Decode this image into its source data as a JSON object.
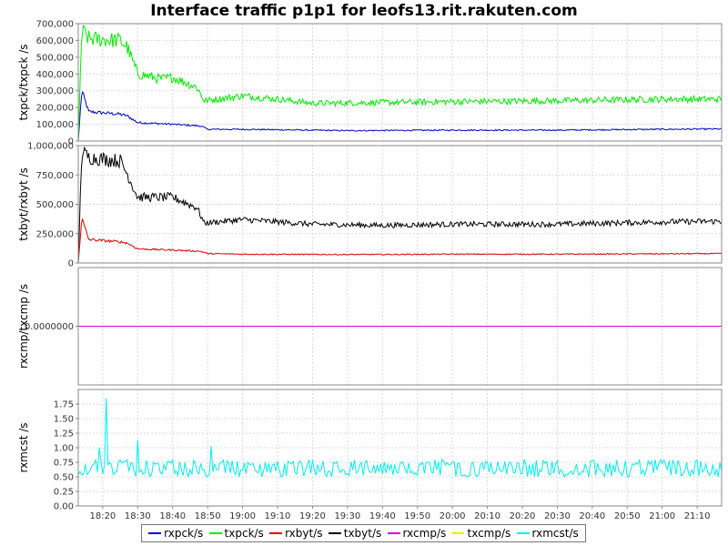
{
  "chart_data": {
    "title": "Interface traffic p1p1 for leofs13.rit.rakuten.com",
    "type": "line",
    "x_ticks": [
      "18:20",
      "18:30",
      "18:40",
      "18:50",
      "19:00",
      "19:10",
      "19:20",
      "19:30",
      "19:40",
      "19:50",
      "20:00",
      "20:10",
      "20:20",
      "20:30",
      "20:40",
      "20:50",
      "21:00",
      "21:10"
    ],
    "xlim": [
      "18:13",
      "21:17"
    ],
    "colors": {
      "rxpck": "#0000cc",
      "txpck": "#00ee00",
      "rxbyt": "#dd0000",
      "txbyt": "#000000",
      "rxcmp": "#dd00dd",
      "txcmp": "#eeee00",
      "rxmcst": "#00eeee"
    },
    "legend": [
      "rxpck/s",
      "txpck/s",
      "rxbyt/s",
      "txbyt/s",
      "rxcmp/s",
      "txcmp/s",
      "rxmcst/s"
    ],
    "legend_position": "bottom",
    "grid": true,
    "panels": [
      {
        "ylabel": "txpck/txpck /s",
        "ylim": [
          0,
          700000
        ],
        "y_ticks": [
          "0",
          "100,000",
          "200,000",
          "300,000",
          "400,000",
          "500,000",
          "600,000",
          "700,000"
        ],
        "series": [
          {
            "name": "rxpck/s",
            "color_key": "rxpck",
            "noise": 0.06,
            "points": [
              [
                "18:13",
                0
              ],
              [
                "18:14",
                300000
              ],
              [
                "18:16",
                175000
              ],
              [
                "18:25",
                160000
              ],
              [
                "18:27",
                150000
              ],
              [
                "18:30",
                110000
              ],
              [
                "18:40",
                100000
              ],
              [
                "18:48",
                90000
              ],
              [
                "18:50",
                70000
              ],
              [
                "19:00",
                70000
              ],
              [
                "19:30",
                62000
              ],
              [
                "20:00",
                65000
              ],
              [
                "20:30",
                65000
              ],
              [
                "21:00",
                70000
              ],
              [
                "21:17",
                72000
              ]
            ]
          },
          {
            "name": "txpck/s",
            "color_key": "txpck",
            "noise": 0.08,
            "points": [
              [
                "18:13",
                0
              ],
              [
                "18:14",
                660000
              ],
              [
                "18:16",
                610000
              ],
              [
                "18:25",
                600000
              ],
              [
                "18:27",
                560000
              ],
              [
                "18:30",
                400000
              ],
              [
                "18:37",
                370000
              ],
              [
                "18:40",
                380000
              ],
              [
                "18:47",
                320000
              ],
              [
                "18:49",
                240000
              ],
              [
                "19:00",
                270000
              ],
              [
                "19:10",
                250000
              ],
              [
                "19:20",
                225000
              ],
              [
                "19:40",
                230000
              ],
              [
                "20:00",
                235000
              ],
              [
                "20:30",
                240000
              ],
              [
                "21:00",
                250000
              ],
              [
                "21:17",
                250000
              ]
            ]
          }
        ]
      },
      {
        "ylabel": "txbyt/rxbyt /s",
        "ylim": [
          0,
          1000000
        ],
        "y_ticks": [
          "0",
          "250,000",
          "500,000",
          "750,000",
          "1,000,000"
        ],
        "series": [
          {
            "name": "txbyt/s",
            "color_key": "txbyt",
            "noise": 0.07,
            "points": [
              [
                "18:13",
                0
              ],
              [
                "18:14",
                950000
              ],
              [
                "18:16",
                900000
              ],
              [
                "18:25",
                870000
              ],
              [
                "18:27",
                760000
              ],
              [
                "18:30",
                560000
              ],
              [
                "18:37",
                560000
              ],
              [
                "18:40",
                560000
              ],
              [
                "18:47",
                470000
              ],
              [
                "18:49",
                340000
              ],
              [
                "19:00",
                370000
              ],
              [
                "19:20",
                330000
              ],
              [
                "19:40",
                320000
              ],
              [
                "20:00",
                330000
              ],
              [
                "20:30",
                330000
              ],
              [
                "21:00",
                350000
              ],
              [
                "21:17",
                355000
              ]
            ]
          },
          {
            "name": "rxbyt/s",
            "color_key": "rxbyt",
            "noise": 0.06,
            "points": [
              [
                "18:13",
                0
              ],
              [
                "18:14",
                380000
              ],
              [
                "18:16",
                200000
              ],
              [
                "18:25",
                180000
              ],
              [
                "18:27",
                170000
              ],
              [
                "18:30",
                120000
              ],
              [
                "18:40",
                110000
              ],
              [
                "18:48",
                100000
              ],
              [
                "18:50",
                80000
              ],
              [
                "19:00",
                75000
              ],
              [
                "19:30",
                72000
              ],
              [
                "20:00",
                75000
              ],
              [
                "20:30",
                75000
              ],
              [
                "21:00",
                78000
              ],
              [
                "21:17",
                80000
              ]
            ]
          }
        ]
      },
      {
        "ylabel": "rxcmp/txcmp /s",
        "ylim": [
          -1,
          1
        ],
        "y_ticks": [
          "0.0000000"
        ],
        "series": [
          {
            "name": "txcmp/s",
            "color_key": "txcmp",
            "noise": 0,
            "points": [
              [
                "18:13",
                0
              ],
              [
                "21:17",
                0
              ]
            ]
          },
          {
            "name": "rxcmp/s",
            "color_key": "rxcmp",
            "noise": 0,
            "points": [
              [
                "18:13",
                0
              ],
              [
                "21:17",
                0
              ]
            ]
          }
        ]
      },
      {
        "ylabel": "rxmcst /s",
        "ylim": [
          0,
          2
        ],
        "y_ticks": [
          "0.00",
          "0.25",
          "0.50",
          "0.75",
          "1.00",
          "1.25",
          "1.50",
          "1.75"
        ],
        "series": [
          {
            "name": "rxmcst/s",
            "color_key": "rxmcst",
            "mode": "mcst",
            "base": 0.62,
            "high": 0.8,
            "low": 0.5,
            "spikes": [
              [
                "18:21",
                1.85
              ],
              [
                "18:19",
                1.0
              ],
              [
                "18:30",
                1.13
              ],
              [
                "18:51",
                1.03
              ]
            ],
            "points": [
              [
                "18:13",
                0.6
              ],
              [
                "21:17",
                0.6
              ]
            ]
          }
        ]
      }
    ]
  }
}
